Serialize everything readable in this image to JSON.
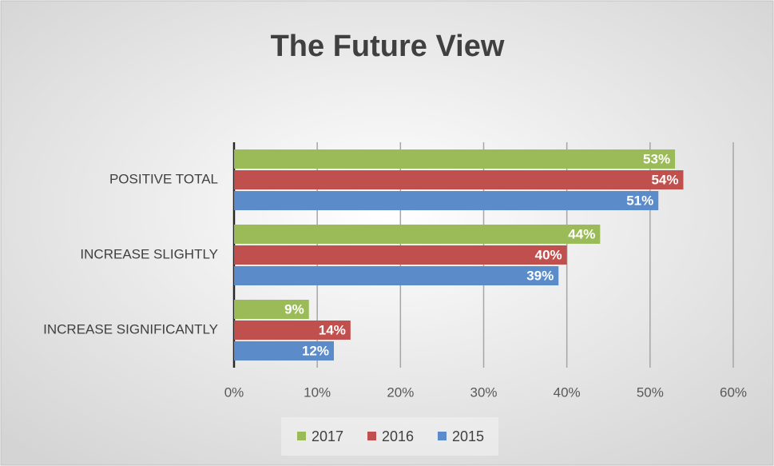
{
  "chart_data": {
    "type": "hbar",
    "title": "The Future View",
    "categories": [
      "POSITIVE TOTAL",
      "INCREASE SLIGHTLY",
      "INCREASE SIGNIFICANTLY"
    ],
    "series": [
      {
        "name": "2017",
        "color": "#9bbb59",
        "values": [
          53,
          44,
          9
        ],
        "value_labels": [
          "53%",
          "44%",
          "9%"
        ]
      },
      {
        "name": "2016",
        "color": "#c0504d",
        "values": [
          54,
          40,
          14
        ],
        "value_labels": [
          "54%",
          "40%",
          "14%"
        ]
      },
      {
        "name": "2015",
        "color": "#5b8cc9",
        "values": [
          51,
          39,
          12
        ],
        "value_labels": [
          "51%",
          "39%",
          "12%"
        ]
      }
    ],
    "xlim": [
      0,
      60
    ],
    "xticks": [
      {
        "value": 0,
        "label": "0%"
      },
      {
        "value": 10,
        "label": "10%"
      },
      {
        "value": 20,
        "label": "20%"
      },
      {
        "value": 30,
        "label": "30%"
      },
      {
        "value": 40,
        "label": "40%"
      },
      {
        "value": 50,
        "label": "50%"
      },
      {
        "value": 60,
        "label": "60%"
      }
    ],
    "grid": true,
    "legend": "bottom"
  }
}
